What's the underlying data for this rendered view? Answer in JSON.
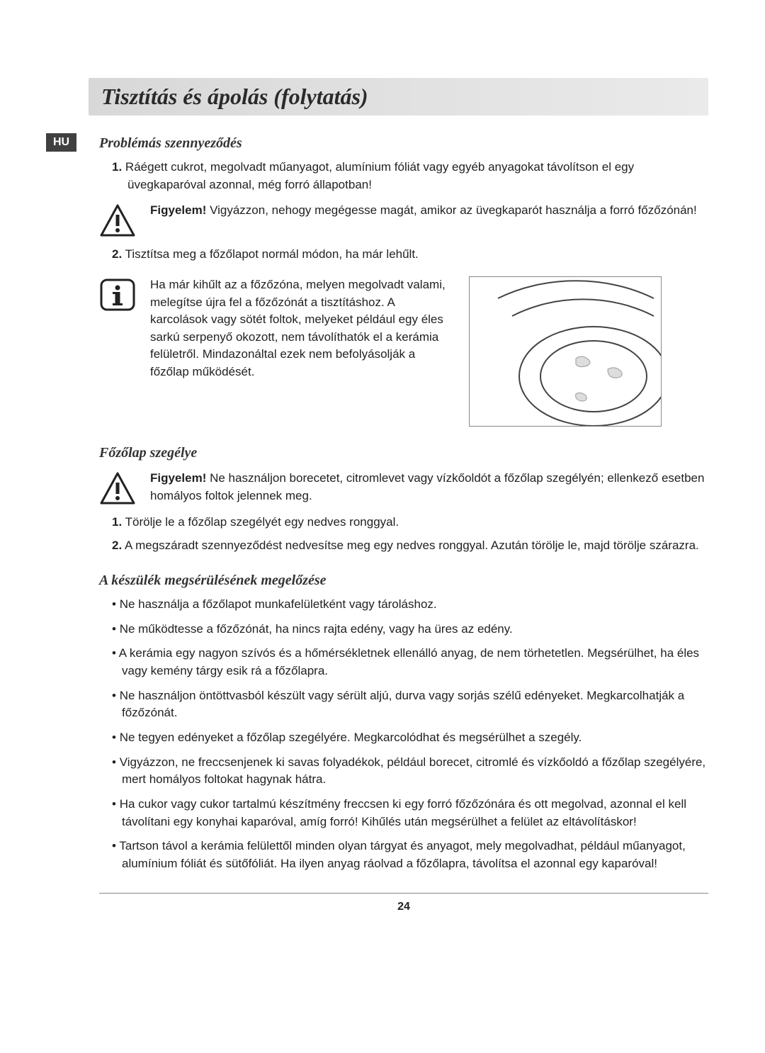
{
  "title": "Tisztítás és ápolás (folytatás)",
  "lang_badge": "HU",
  "section1": {
    "heading": "Problémás szennyeződés",
    "item1_num": "1.",
    "item1_text": "Ráégett cukrot, megolvadt műanyagot, alumínium fóliát vagy egyéb anyagokat távolítson el egy üvegkaparóval azonnal, még forró állapotban!",
    "warn_bold": "Figyelem!",
    "warn_text": " Vigyázzon, nehogy megégesse magát, amikor az üvegkaparót használja a forró főzőzónán!",
    "item2_num": "2.",
    "item2_text": "Tisztítsa meg a főzőlapot normál módon, ha már lehűlt.",
    "info_text": "Ha már kihűlt az a főzőzóna, melyen megolvadt valami, melegítse újra fel a főzőzónát a tisztításhoz. A karcolások vagy sötét foltok, melyeket például egy éles sarkú serpenyő okozott, nem távolíthatók el a kerámia felületről. Mindazonáltal ezek nem befolyásolják a főzőlap működését."
  },
  "section2": {
    "heading": "Főzőlap szegélye",
    "warn_bold": "Figyelem!",
    "warn_text": " Ne használjon borecetet, citromlevet vagy vízkőoldót a főzőlap szegélyén; ellenkező esetben homályos foltok jelennek meg.",
    "item1_num": "1.",
    "item1_text": "Törölje le a főzőlap szegélyét egy nedves ronggyal.",
    "item2_num": "2.",
    "item2_text": "A megszáradt szennyeződést nedvesítse meg egy nedves ronggyal. Azután törölje le, majd törölje szárazra."
  },
  "section3": {
    "heading": "A készülék megsérülésének megelőzése",
    "bullets": [
      "Ne használja a főzőlapot munkafelületként vagy tároláshoz.",
      "Ne működtesse a főzőzónát, ha nincs rajta edény, vagy ha üres az edény.",
      "A kerámia egy nagyon szívós és a hőmérsékletnek ellenálló anyag, de nem törhetetlen. Megsérülhet, ha éles vagy kemény tárgy esik rá a főzőlapra.",
      "Ne használjon öntöttvasból készült vagy sérült aljú, durva vagy sorjás szélű edényeket. Megkarcolhatják a főzőzónát.",
      "Ne tegyen edényeket a főzőlap szegélyére. Megkarcolódhat és megsérülhet a szegély.",
      "Vigyázzon, ne freccsenjenek ki savas folyadékok, például borecet, citromlé és vízkőoldó a főzőlap szegélyére, mert homályos foltokat hagynak hátra.",
      "Ha cukor vagy cukor tartalmú készítmény freccsen ki egy forró főzőzónára és ott megolvad, azonnal el kell távolítani egy konyhai kaparóval, amíg forró! Kihűlés után megsérülhet a felület az eltávolításkor!",
      "Tartson távol a kerámia felülettől minden olyan tárgyat és anyagot, mely megolvadhat, például műanyagot, alumínium fóliát és sütőfóliát. Ha ilyen anyag ráolvad a főzőlapra, távolítsa el azonnal egy kaparóval!"
    ]
  },
  "page_number": "24",
  "colors": {
    "title_bg_start": "#d8d8d8",
    "title_bg_end": "#eaeaea",
    "badge_bg": "#404040",
    "text": "#222222"
  }
}
